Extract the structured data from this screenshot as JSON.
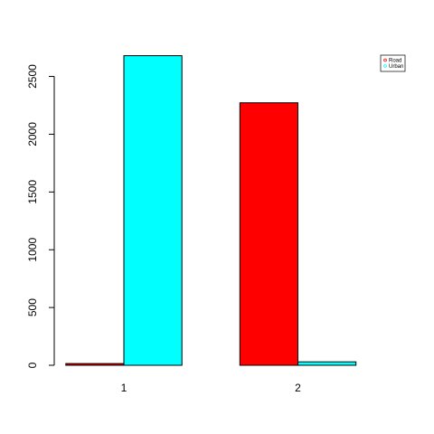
{
  "chart_data": {
    "type": "bar",
    "layout": "grouped",
    "title": "",
    "xlabel": "",
    "ylabel": "",
    "categories": [
      "1",
      "2"
    ],
    "series": [
      {
        "name": "Road",
        "color": "#ff0000",
        "values": [
          15,
          2272
        ]
      },
      {
        "name": "Urban",
        "color": "#00ffff",
        "values": [
          2680,
          30
        ]
      }
    ],
    "ylim": [
      0,
      2700
    ],
    "yticks": [
      0,
      500,
      1000,
      1500,
      2000,
      2500
    ],
    "ytick_labels": [
      "0",
      "500",
      "1000",
      "1500",
      "2000",
      "2500"
    ],
    "grid": false,
    "legend_position": "top-right"
  }
}
